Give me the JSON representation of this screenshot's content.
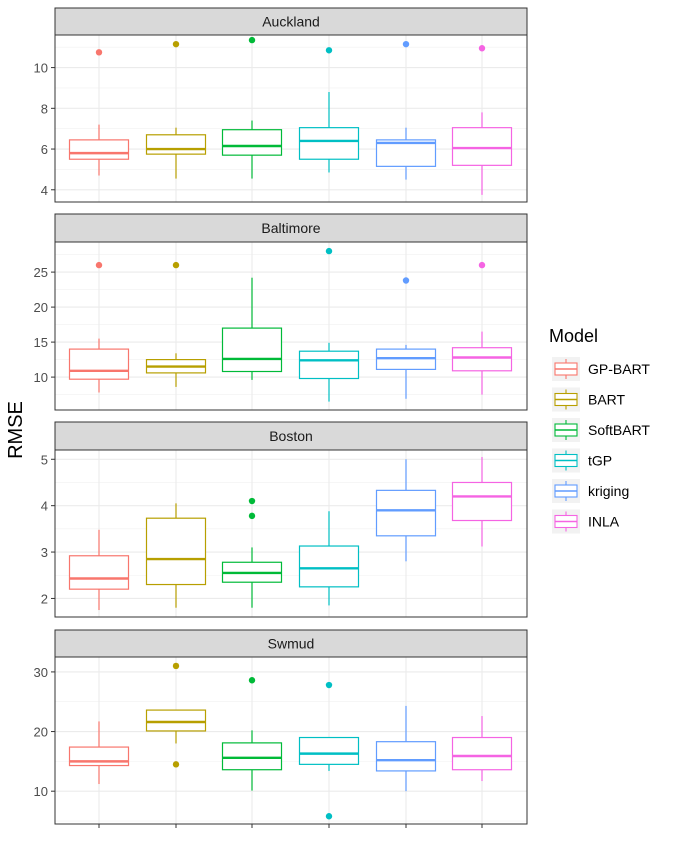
{
  "chart_data": {
    "type": "boxplot",
    "ylabel": "RMSE",
    "xlabel": "",
    "legend": {
      "title": "Model",
      "position": "right",
      "items": [
        {
          "name": "GP-BART",
          "color": "#F8766D"
        },
        {
          "name": "BART",
          "color": "#B79F00"
        },
        {
          "name": "SoftBART",
          "color": "#00BA38"
        },
        {
          "name": "tGP",
          "color": "#00BFC4"
        },
        {
          "name": "kriging",
          "color": "#619CFF"
        },
        {
          "name": "INLA",
          "color": "#F564E3"
        }
      ]
    },
    "grid": true,
    "panels": [
      {
        "title": "Auckland",
        "ylim": [
          3.4,
          11.6
        ],
        "ticks": [
          4,
          6,
          8,
          10
        ],
        "boxes": [
          {
            "model": "GP-BART",
            "min": 4.7,
            "q1": 5.5,
            "median": 5.8,
            "q3": 6.45,
            "max": 7.2,
            "outliers": [
              10.75
            ]
          },
          {
            "model": "BART",
            "min": 4.55,
            "q1": 5.75,
            "median": 6.0,
            "q3": 6.7,
            "max": 7.05,
            "outliers": [
              11.15
            ]
          },
          {
            "model": "SoftBART",
            "min": 4.55,
            "q1": 5.7,
            "median": 6.15,
            "q3": 6.95,
            "max": 7.4,
            "outliers": [
              11.35
            ]
          },
          {
            "model": "tGP",
            "min": 4.85,
            "q1": 5.5,
            "median": 6.4,
            "q3": 7.05,
            "max": 8.8,
            "outliers": [
              10.85
            ]
          },
          {
            "model": "kriging",
            "min": 4.5,
            "q1": 5.15,
            "median": 6.3,
            "q3": 6.45,
            "max": 7.05,
            "outliers": [
              11.15
            ]
          },
          {
            "model": "INLA",
            "min": 3.75,
            "q1": 5.2,
            "median": 6.05,
            "q3": 7.05,
            "max": 7.8,
            "outliers": [
              10.95
            ]
          }
        ]
      },
      {
        "title": "Baltimore",
        "ylim": [
          5.3,
          29.3
        ],
        "ticks": [
          10,
          15,
          20,
          25
        ],
        "boxes": [
          {
            "model": "GP-BART",
            "min": 7.8,
            "q1": 9.7,
            "median": 10.9,
            "q3": 14.0,
            "max": 15.5,
            "outliers": [
              26.0
            ]
          },
          {
            "model": "BART",
            "min": 8.6,
            "q1": 10.6,
            "median": 11.5,
            "q3": 12.5,
            "max": 13.4,
            "outliers": [
              26.0
            ]
          },
          {
            "model": "SoftBART",
            "min": 9.6,
            "q1": 10.8,
            "median": 12.6,
            "q3": 17.0,
            "max": 24.2,
            "outliers": []
          },
          {
            "model": "tGP",
            "min": 6.5,
            "q1": 9.8,
            "median": 12.4,
            "q3": 13.7,
            "max": 14.9,
            "outliers": [
              28.0
            ]
          },
          {
            "model": "kriging",
            "min": 6.9,
            "q1": 11.1,
            "median": 12.7,
            "q3": 14.0,
            "max": 14.6,
            "outliers": [
              23.8
            ]
          },
          {
            "model": "INLA",
            "min": 7.5,
            "q1": 10.9,
            "median": 12.8,
            "q3": 14.2,
            "max": 16.5,
            "outliers": [
              26.0
            ]
          }
        ]
      },
      {
        "title": "Boston",
        "ylim": [
          1.6,
          5.2
        ],
        "ticks": [
          2,
          3,
          4,
          5
        ],
        "boxes": [
          {
            "model": "GP-BART",
            "min": 1.75,
            "q1": 2.2,
            "median": 2.43,
            "q3": 2.92,
            "max": 3.48,
            "outliers": []
          },
          {
            "model": "BART",
            "min": 1.8,
            "q1": 2.3,
            "median": 2.85,
            "q3": 3.73,
            "max": 4.05,
            "outliers": []
          },
          {
            "model": "SoftBART",
            "min": 1.8,
            "q1": 2.35,
            "median": 2.55,
            "q3": 2.78,
            "max": 3.1,
            "outliers": [
              3.78,
              4.1
            ]
          },
          {
            "model": "tGP",
            "min": 1.85,
            "q1": 2.25,
            "median": 2.65,
            "q3": 3.13,
            "max": 3.88,
            "outliers": []
          },
          {
            "model": "kriging",
            "min": 2.8,
            "q1": 3.35,
            "median": 3.9,
            "q3": 4.33,
            "max": 5.0,
            "outliers": []
          },
          {
            "model": "INLA",
            "min": 3.12,
            "q1": 3.68,
            "median": 4.2,
            "q3": 4.5,
            "max": 5.05,
            "outliers": []
          }
        ]
      },
      {
        "title": "Swmud",
        "ylim": [
          4.5,
          32.5
        ],
        "ticks": [
          10,
          20,
          30
        ],
        "boxes": [
          {
            "model": "GP-BART",
            "min": 11.2,
            "q1": 14.3,
            "median": 15.0,
            "q3": 17.4,
            "max": 21.7,
            "outliers": []
          },
          {
            "model": "BART",
            "min": 18.0,
            "q1": 20.1,
            "median": 21.6,
            "q3": 23.6,
            "max": 23.6,
            "outliers": [
              31.0,
              14.5
            ]
          },
          {
            "model": "SoftBART",
            "min": 10.1,
            "q1": 13.6,
            "median": 15.6,
            "q3": 18.1,
            "max": 20.2,
            "outliers": [
              28.6
            ]
          },
          {
            "model": "tGP",
            "min": 13.4,
            "q1": 14.5,
            "median": 16.3,
            "q3": 19.0,
            "max": 19.0,
            "outliers": [
              27.8,
              5.8
            ]
          },
          {
            "model": "kriging",
            "min": 10.0,
            "q1": 13.4,
            "median": 15.2,
            "q3": 18.3,
            "max": 24.3,
            "outliers": []
          },
          {
            "model": "INLA",
            "min": 11.7,
            "q1": 13.6,
            "median": 15.9,
            "q3": 19.0,
            "max": 22.6,
            "outliers": []
          }
        ]
      }
    ]
  }
}
